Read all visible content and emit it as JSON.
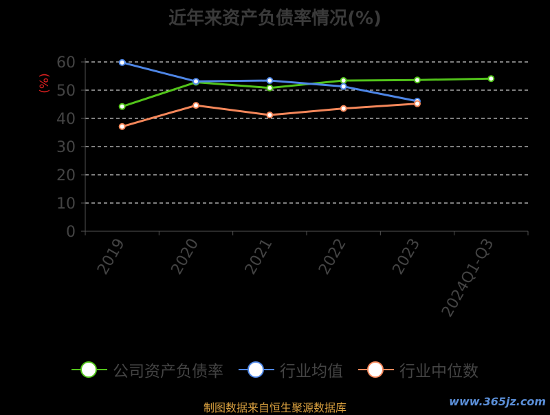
{
  "title": "近年来资产负债率情况(%)",
  "source": "制图数据来自恒生聚源数据库",
  "watermark": "www.365jz.com",
  "chart_data": {
    "type": "line",
    "title": "近年来资产负债率情况(%)",
    "ylabel": "(%)",
    "xlabel": "",
    "categories": [
      "2019",
      "2020",
      "2021",
      "2022",
      "2023",
      "2024Q1-Q3"
    ],
    "ylim": [
      0,
      60
    ],
    "yticks": [
      0,
      10,
      20,
      30,
      40,
      50,
      60
    ],
    "grid": true,
    "legend_position": "bottom",
    "series": [
      {
        "name": "公司资产负债率",
        "color": "#52c41a",
        "values": [
          44.2,
          52.8,
          50.8,
          53.4,
          53.6,
          54.1
        ]
      },
      {
        "name": "行业均值",
        "color": "#4e86e6",
        "values": [
          59.8,
          53.1,
          53.4,
          51.3,
          46.1,
          null
        ]
      },
      {
        "name": "行业中位数",
        "color": "#f5875a",
        "values": [
          37.1,
          44.6,
          41.2,
          43.5,
          45.2,
          null
        ]
      }
    ]
  }
}
